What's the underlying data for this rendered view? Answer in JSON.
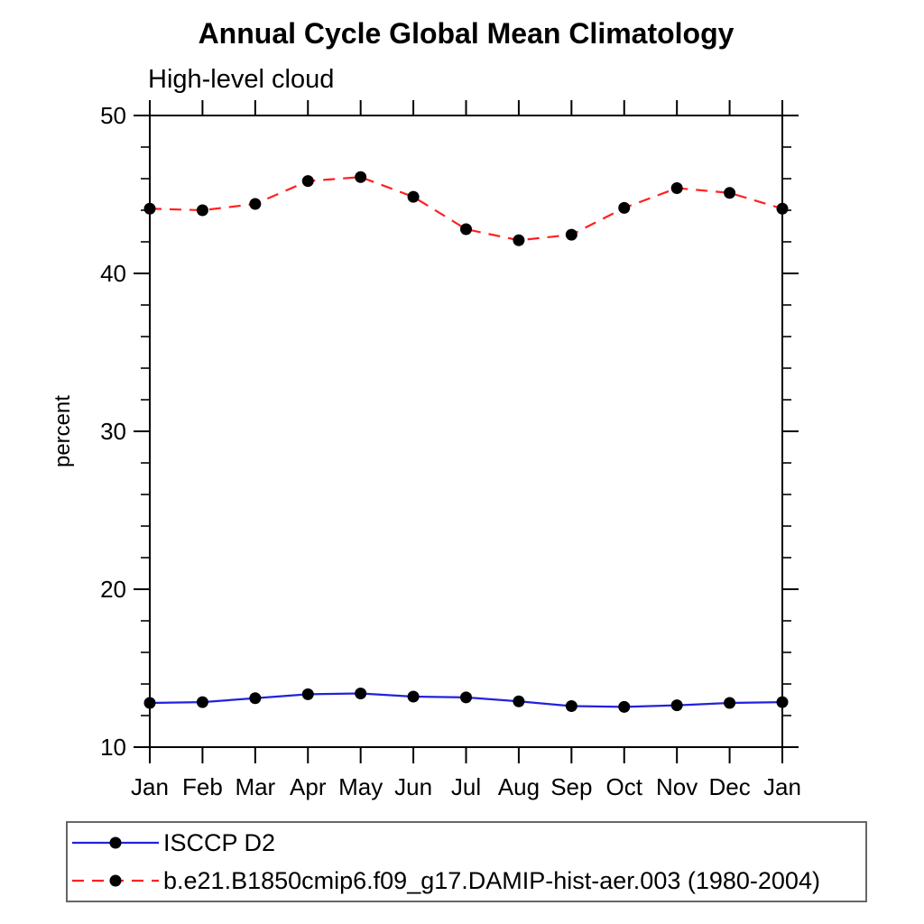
{
  "chart_data": {
    "type": "line",
    "title": "Annual Cycle Global Mean Climatology",
    "subtitle": "High-level cloud",
    "xlabel": "",
    "ylabel": "percent",
    "x_labels": [
      "Jan",
      "Feb",
      "Mar",
      "Apr",
      "May",
      "Jun",
      "Jul",
      "Aug",
      "Sep",
      "Oct",
      "Nov",
      "Dec",
      "Jan"
    ],
    "ylim": [
      10,
      50
    ],
    "ytick_major": [
      10,
      20,
      30,
      40,
      50
    ],
    "ytick_minor_step": 2,
    "grid": false,
    "legend_position": "bottom-left-box",
    "frame_color": "#000000",
    "marker": "filled-circle",
    "marker_color": "#000000",
    "series": [
      {
        "name": "ISCCP D2",
        "color": "#2222dd",
        "line_style": "solid",
        "values": [
          12.8,
          12.85,
          13.1,
          13.35,
          13.4,
          13.2,
          13.15,
          12.9,
          12.6,
          12.55,
          12.65,
          12.8,
          12.85
        ]
      },
      {
        "name": "b.e21.B1850cmip6.f09_g17.DAMIP-hist-aer.003 (1980-2004)",
        "color": "#ff2020",
        "line_style": "dashed",
        "values": [
          44.1,
          44.0,
          44.4,
          45.85,
          46.1,
          44.85,
          42.8,
          42.1,
          42.45,
          44.15,
          45.4,
          45.1,
          44.1
        ]
      }
    ]
  }
}
